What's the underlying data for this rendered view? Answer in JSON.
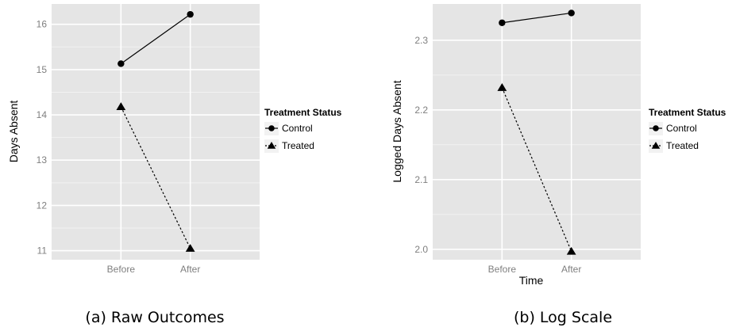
{
  "chart_data": [
    {
      "type": "line",
      "caption": "(a) Raw Outcomes",
      "categories": [
        "Before",
        "After"
      ],
      "xlabel": "",
      "ylabel": "Days Absent",
      "ylim": [
        10.8,
        16.45
      ],
      "yticks": [
        "11",
        "12",
        "13",
        "14",
        "15",
        "16"
      ],
      "grid": true,
      "legend": {
        "title": "Treatment Status",
        "placement": "right",
        "entries": [
          "Control",
          "Treated"
        ]
      },
      "series": [
        {
          "name": "Control",
          "values": [
            15.13,
            16.22
          ],
          "marker": "circle",
          "line": "solid"
        },
        {
          "name": "Treated",
          "values": [
            14.18,
            11.05
          ],
          "marker": "triangle",
          "line": "dotted"
        }
      ]
    },
    {
      "type": "line",
      "caption": "(b) Log Scale",
      "categories": [
        "Before",
        "After"
      ],
      "xlabel": "Time",
      "ylabel": "Logged Days Absent",
      "ylim": [
        1.985,
        2.352
      ],
      "yticks": [
        "2.0",
        "2.1",
        "2.2",
        "2.3"
      ],
      "grid": true,
      "legend": {
        "title": "Treatment Status",
        "placement": "right",
        "entries": [
          "Control",
          "Treated"
        ]
      },
      "series": [
        {
          "name": "Control",
          "values": [
            2.325,
            2.339
          ],
          "marker": "circle",
          "line": "solid"
        },
        {
          "name": "Treated",
          "values": [
            2.232,
            1.997
          ],
          "marker": "triangle",
          "line": "dotted"
        }
      ]
    }
  ],
  "colors": {
    "panel_bg": "#e5e5e5",
    "grid_major": "#ffffff",
    "grid_minor": "#f2f2f2",
    "tick_text": "#7f7f7f",
    "series": "#000000"
  }
}
